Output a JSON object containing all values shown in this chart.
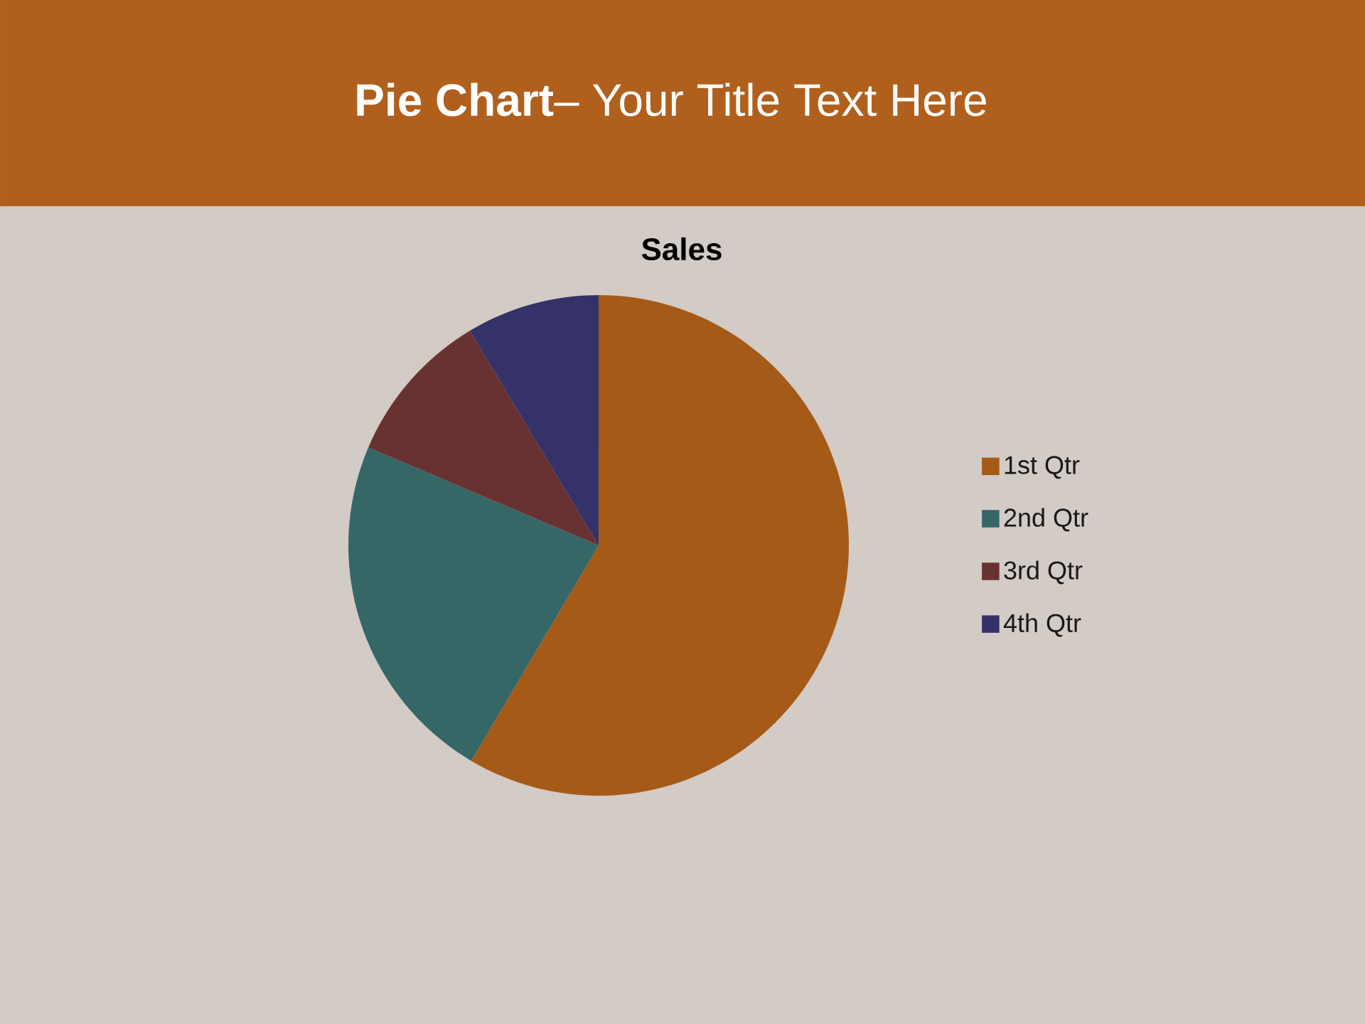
{
  "chart_data": {
    "type": "pie",
    "title": "**Pie Chart**– Your Title Text Here",
    "subtitle": "Sales",
    "categories": [
      "1st Qtr",
      "2nd Qtr",
      "3rd Qtr",
      "4th Qtr"
    ],
    "values": [
      58.5,
      22.9,
      10,
      8.6
    ],
    "colors": [
      "#a65a18",
      "#356767",
      "#693232",
      "#343268"
    ],
    "legend": "right"
  }
}
